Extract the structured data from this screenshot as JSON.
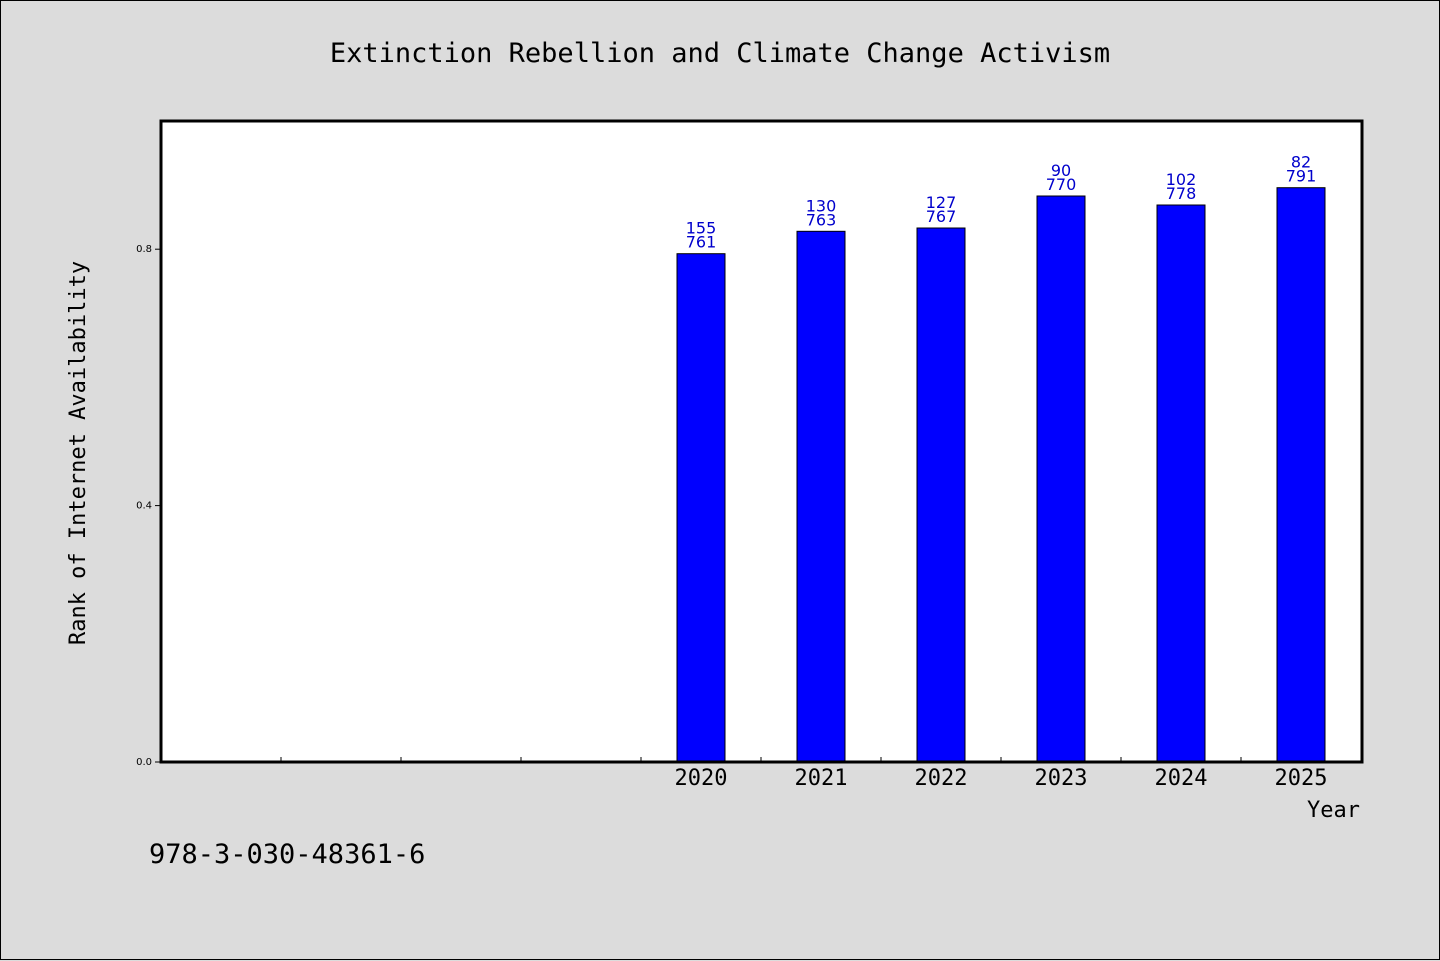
{
  "chart_data": {
    "type": "bar",
    "title": "Extinction Rebellion and Climate Change Activism",
    "xlabel": "Year",
    "ylabel": "Rank of Internet Availability",
    "categories": [
      "",
      "",
      "",
      "",
      "2020",
      "2021",
      "2022",
      "2023",
      "2024",
      "2025"
    ],
    "values": [
      null,
      null,
      null,
      null,
      0.793,
      0.828,
      0.833,
      0.883,
      0.869,
      0.896
    ],
    "bar_labels_top": [
      "",
      "",
      "",
      "",
      "155",
      "130",
      "127",
      "90",
      "102",
      "82"
    ],
    "bar_labels_bottom": [
      "",
      "",
      "",
      "",
      "761",
      "763",
      "767",
      "770",
      "778",
      "791"
    ],
    "yticks": [
      0.0,
      0.4,
      0.8
    ],
    "ytick_labels": [
      "0.0",
      "0.4",
      "0.8"
    ],
    "ylim": [
      0,
      1.0
    ],
    "grid": false,
    "legend": "none",
    "colors": {
      "bar": "#0000ff",
      "bar_edge": "#000000",
      "data_label": "#0000cc",
      "plot_background": "#ffffff",
      "figure_background": "#dcdcdc"
    }
  },
  "footer": {
    "isbn": "978-3-030-48361-6"
  }
}
